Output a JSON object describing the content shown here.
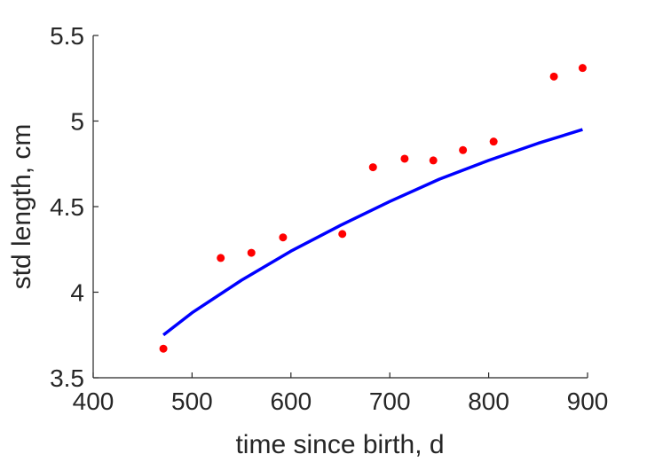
{
  "chart_data": {
    "type": "scatter",
    "title": "",
    "xlabel": "time since birth, d",
    "ylabel": "std length, cm",
    "xlim": [
      400,
      900
    ],
    "ylim": [
      3.5,
      5.5
    ],
    "xticks": [
      400,
      500,
      600,
      700,
      800,
      900
    ],
    "yticks": [
      3.5,
      4,
      4.5,
      5,
      5.5
    ],
    "xtick_labels": [
      "400",
      "500",
      "600",
      "700",
      "800",
      "900"
    ],
    "ytick_labels": [
      "3.5",
      "4",
      "4.5",
      "5",
      "5.5"
    ],
    "grid": false,
    "series": [
      {
        "kind": "points",
        "color": "#ff0000",
        "x": [
          471,
          529,
          560,
          592,
          652,
          683,
          715,
          744,
          774,
          805,
          866,
          895
        ],
        "y": [
          3.67,
          4.2,
          4.23,
          4.32,
          4.34,
          4.73,
          4.78,
          4.77,
          4.83,
          4.88,
          5.26,
          5.31
        ]
      },
      {
        "kind": "line",
        "color": "#0000ff",
        "x": [
          471,
          500,
          550,
          600,
          650,
          700,
          750,
          800,
          850,
          895
        ],
        "y": [
          3.75,
          3.88,
          4.07,
          4.24,
          4.39,
          4.53,
          4.66,
          4.77,
          4.87,
          4.95
        ]
      }
    ]
  }
}
